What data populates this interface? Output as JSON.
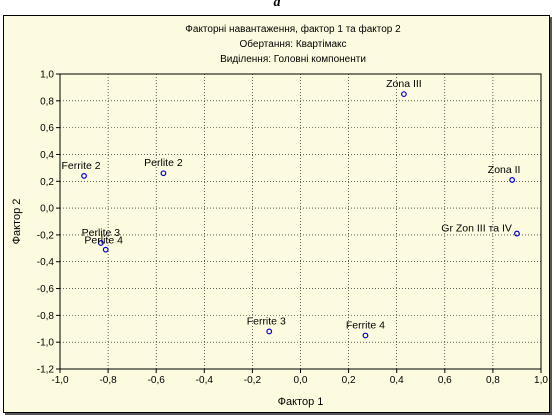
{
  "caption": "a",
  "chart_data": {
    "type": "scatter",
    "title_lines": [
      "Факторні навантаження, фактор 1 та фактор  2",
      "Обертання: Квартімакс",
      "Виділення: Головні компоненти"
    ],
    "xlabel": "Фактор 1",
    "ylabel": "Фактор 2",
    "xlim": [
      -1.0,
      1.0
    ],
    "ylim": [
      -1.2,
      1.0
    ],
    "x_ticks": [
      "-1,0",
      "-0,8",
      "-0,6",
      "-0,4",
      "-0,2",
      "0,0",
      "0,2",
      "0,4",
      "0,6",
      "0,8",
      "1,0"
    ],
    "y_ticks": [
      "1,0",
      "0,8",
      "0,6",
      "0,4",
      "0,2",
      "0,0",
      "-0,2",
      "-0,4",
      "-0,6",
      "-0,8",
      "-1,0",
      "-1,2"
    ],
    "grid": true,
    "marker_color": "#0000cc",
    "points": [
      {
        "label": "Zona III",
        "x": 0.43,
        "y": 0.85
      },
      {
        "label": "Ferrite 2",
        "x": -0.9,
        "y": 0.24
      },
      {
        "label": "Perlite 2",
        "x": -0.57,
        "y": 0.26
      },
      {
        "label": "Zona II",
        "x": 0.88,
        "y": 0.21
      },
      {
        "label": "Gr Zon III та IV",
        "x": 0.9,
        "y": -0.19
      },
      {
        "label": "Perlite 3",
        "x": -0.83,
        "y": -0.26
      },
      {
        "label": "Perlite 4",
        "x": -0.81,
        "y": -0.31
      },
      {
        "label": "Ferrite 3",
        "x": -0.13,
        "y": -0.92
      },
      {
        "label": "Ferrite 4",
        "x": 0.27,
        "y": -0.95
      }
    ]
  }
}
